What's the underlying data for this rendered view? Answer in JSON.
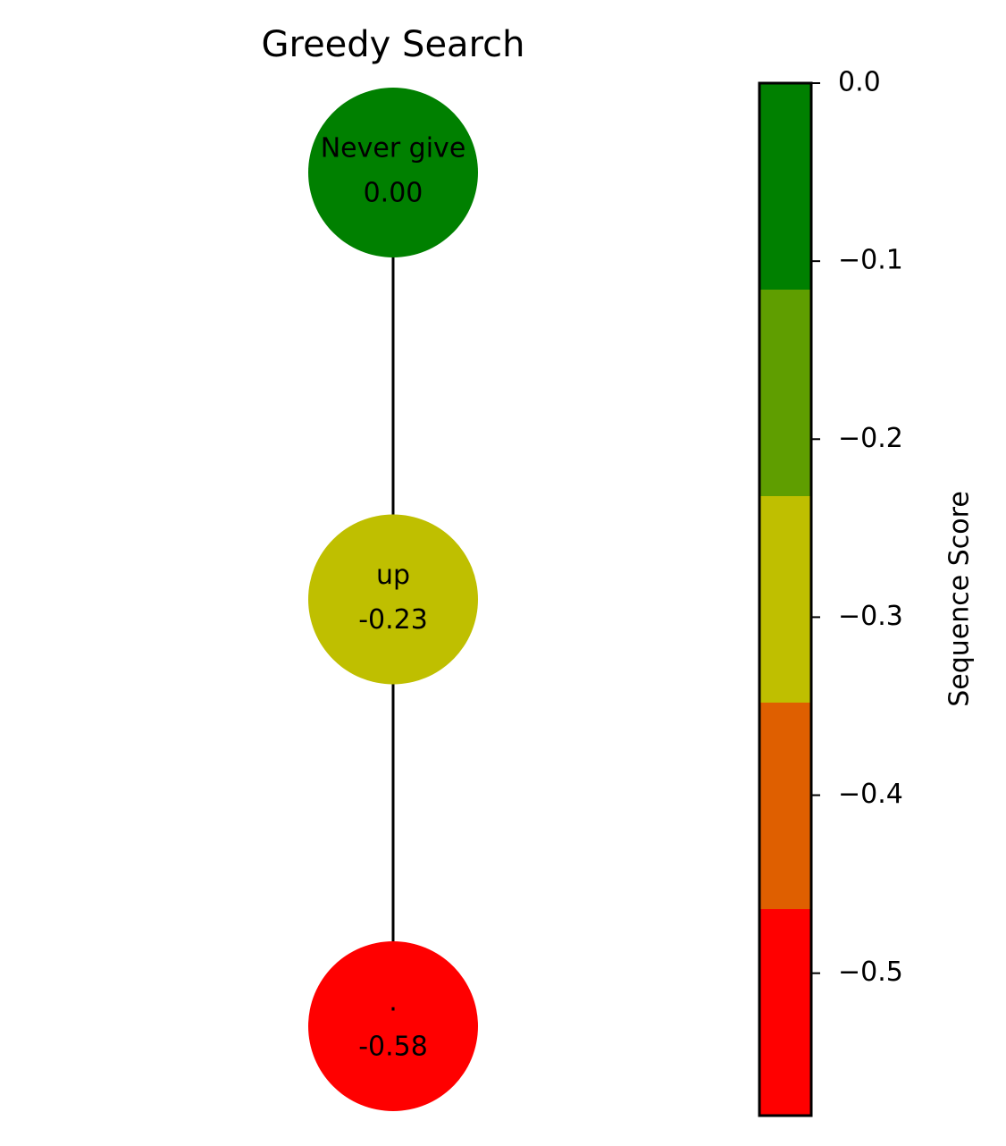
{
  "title": "Greedy Search",
  "nodes": [
    {
      "label": "Never give",
      "score": "0.00",
      "color": "#008000"
    },
    {
      "label": "up",
      "score": "-0.23",
      "color": "#bfbf00"
    },
    {
      "label": ".",
      "score": "-0.58",
      "color": "#ff0000"
    }
  ],
  "edges": [
    [
      0,
      1
    ],
    [
      1,
      2
    ]
  ],
  "colorbar": {
    "label": "Sequence Score",
    "lim": [
      -0.58,
      0
    ],
    "ticks": [
      {
        "value": 0,
        "label": "0.0"
      },
      {
        "value": -0.1,
        "label": "−0.1"
      },
      {
        "value": -0.2,
        "label": "−0.2"
      },
      {
        "value": -0.3,
        "label": "−0.3"
      },
      {
        "value": -0.4,
        "label": "−0.4"
      },
      {
        "value": -0.5,
        "label": "−0.5"
      }
    ],
    "bands": [
      {
        "from": 0,
        "to": -0.116,
        "color": "#008000"
      },
      {
        "from": -0.116,
        "to": -0.232,
        "color": "#5f9e00"
      },
      {
        "from": -0.232,
        "to": -0.348,
        "color": "#bfbf00"
      },
      {
        "from": -0.348,
        "to": -0.464,
        "color": "#df5f00"
      },
      {
        "from": -0.464,
        "to": -0.58,
        "color": "#ff0000"
      }
    ]
  }
}
